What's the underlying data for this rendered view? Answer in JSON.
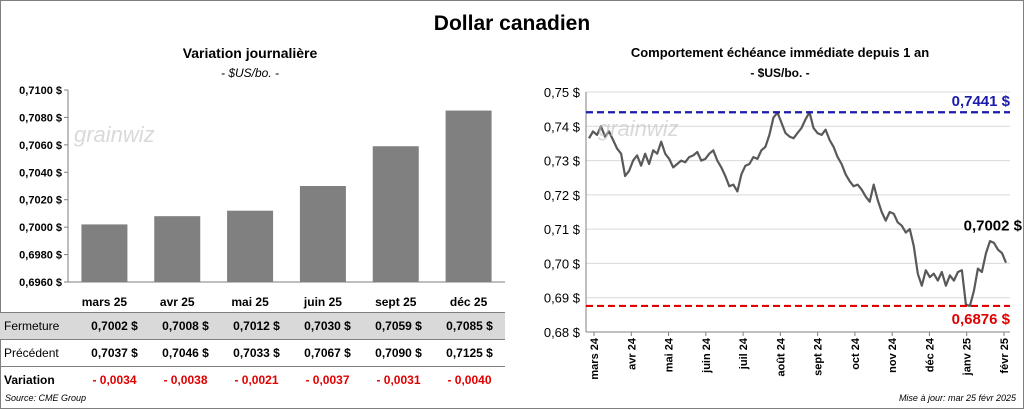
{
  "title": "Dollar canadien",
  "left": {
    "subtitle": "Variation  journalière",
    "unit": "- $US/bo. -",
    "watermark": "grainwiz"
  },
  "right": {
    "subtitle": "Comportement échéance immédiate depuis 1 an",
    "unit": "- $US/bo. -",
    "watermark": "grainwiz"
  },
  "table": {
    "rows": [
      {
        "label": "Fermeture",
        "values": [
          "0,7002 $",
          "0,7008 $",
          "0,7012 $",
          "0,7030 $",
          "0,7059 $",
          "0,7085 $"
        ]
      },
      {
        "label": "Précédent",
        "values": [
          "0,7037 $",
          "0,7046 $",
          "0,7033 $",
          "0,7067 $",
          "0,7090 $",
          "0,7125 $"
        ]
      },
      {
        "label": "Variation",
        "values": [
          "- 0,0034",
          "- 0,0038",
          "- 0,0021",
          "- 0,0037",
          "- 0,0031",
          "- 0,0040"
        ]
      }
    ]
  },
  "footer": {
    "source": "Source: CME Group",
    "updated": "Mise à jour: mar 25 févr 2025"
  },
  "colors": {
    "bar": "#808080",
    "line": "#595959",
    "high": "#1a1aad",
    "low": "#e00000"
  },
  "chart_data": [
    {
      "type": "bar",
      "categories": [
        "mars 25",
        "avr 25",
        "mai 25",
        "juin 25",
        "sept 25",
        "déc 25"
      ],
      "values": [
        0.7002,
        0.7008,
        0.7012,
        0.703,
        0.7059,
        0.7085
      ],
      "ylim": [
        0.696,
        0.71
      ],
      "yticks": [
        0.696,
        0.698,
        0.7,
        0.702,
        0.704,
        0.706,
        0.708,
        0.71
      ],
      "ytick_labels": [
        "0,6960 $",
        "0,6980 $",
        "0,7000 $",
        "0,7020 $",
        "0,7040 $",
        "0,7060 $",
        "0,7080 $",
        "0,7100 $"
      ],
      "title": "Variation  journalière",
      "grid": false
    },
    {
      "type": "line",
      "ylim": [
        0.68,
        0.75
      ],
      "yticks": [
        0.68,
        0.69,
        0.7,
        0.71,
        0.72,
        0.73,
        0.74,
        0.75
      ],
      "ytick_labels": [
        "0,68 $",
        "0,69 $",
        "0,70 $",
        "0,71 $",
        "0,72 $",
        "0,73 $",
        "0,74 $",
        "0,75 $"
      ],
      "xtick_labels": [
        "mars 24",
        "avr 24",
        "mai 24",
        "juin 24",
        "juil 24",
        "août 24",
        "sept 24",
        "oct 24",
        "nov 24",
        "déc 24",
        "janv 25",
        "févr 25"
      ],
      "series_values": [
        0.7365,
        0.7385,
        0.7375,
        0.74,
        0.737,
        0.7385,
        0.736,
        0.7335,
        0.732,
        0.7255,
        0.727,
        0.73,
        0.7315,
        0.7285,
        0.732,
        0.729,
        0.733,
        0.732,
        0.7355,
        0.732,
        0.7305,
        0.728,
        0.729,
        0.73,
        0.7295,
        0.731,
        0.7315,
        0.7325,
        0.73,
        0.7305,
        0.732,
        0.733,
        0.73,
        0.728,
        0.7255,
        0.7225,
        0.723,
        0.721,
        0.726,
        0.7285,
        0.729,
        0.731,
        0.7305,
        0.733,
        0.734,
        0.7375,
        0.7425,
        0.744,
        0.741,
        0.738,
        0.737,
        0.7365,
        0.738,
        0.7395,
        0.742,
        0.7441,
        0.7395,
        0.738,
        0.7375,
        0.739,
        0.736,
        0.734,
        0.731,
        0.729,
        0.726,
        0.724,
        0.7225,
        0.723,
        0.7215,
        0.7195,
        0.718,
        0.723,
        0.7185,
        0.715,
        0.7125,
        0.715,
        0.7145,
        0.712,
        0.711,
        0.709,
        0.71,
        0.705,
        0.697,
        0.6935,
        0.698,
        0.696,
        0.697,
        0.695,
        0.6975,
        0.6935,
        0.6965,
        0.695,
        0.6975,
        0.698,
        0.688,
        0.6876,
        0.692,
        0.6985,
        0.6975,
        0.703,
        0.7065,
        0.706,
        0.704,
        0.703,
        0.7002
      ],
      "series_range": [
        "mars 24",
        "févr 25"
      ],
      "reference_lines": [
        {
          "value": 0.7441,
          "label": "0,7441 $",
          "color": "#1a1aad",
          "style": "dashed"
        },
        {
          "value": 0.6876,
          "label": "0,6876 $",
          "color": "#e00000",
          "style": "dashed"
        }
      ],
      "last_value_label": "0,7002 $",
      "title": "Comportement échéance immédiate depuis 1 an",
      "grid": true
    }
  ]
}
